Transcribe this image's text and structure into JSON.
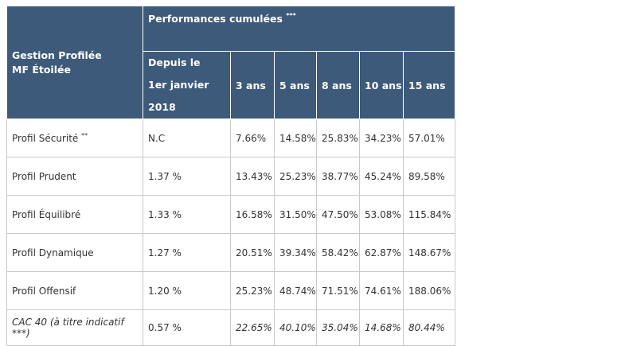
{
  "table": {
    "corner_header_line1": "Gestion Profilée",
    "corner_header_line2": "MF Étoilée",
    "group_header": "Performances cumulées",
    "group_header_mark": "***",
    "columns": [
      {
        "line1": "Depuis le",
        "line2": "1er janvier 2018"
      },
      {
        "label": "3 ans"
      },
      {
        "label": "5 ans"
      },
      {
        "label": "8 ans"
      },
      {
        "label": "10 ans"
      },
      {
        "label": "15 ans"
      }
    ],
    "rows": [
      {
        "label": "Profil Sécurité",
        "mark": "**",
        "values": [
          "N.C",
          "7.66%",
          "14.58%",
          "25.83%",
          "34.23%",
          "57.01%"
        ]
      },
      {
        "label": "Profil Prudent",
        "mark": "",
        "values": [
          "1.37 %",
          "13.43%",
          "25.23%",
          "38.77%",
          "45.24%",
          "89.58%"
        ]
      },
      {
        "label": "Profil Équilibré",
        "mark": "",
        "values": [
          "1.33 %",
          "16.58%",
          "31.50%",
          "47.50%",
          "53.08%",
          "115.84%"
        ]
      },
      {
        "label": "Profil Dynamique",
        "mark": "",
        "values": [
          "1.27 %",
          "20.51%",
          "39.34%",
          "58.42%",
          "62.87%",
          "148.67%"
        ]
      },
      {
        "label": "Profil Offensif",
        "mark": "",
        "values": [
          "1.20 %",
          "25.23%",
          "48.74%",
          "71.51%",
          "74.61%",
          "188.06%"
        ]
      },
      {
        "label": "CAC 40 (à titre indicatif ***)",
        "mark": "",
        "values": [
          "0.57 %",
          "22.65%",
          "40.10%",
          "35.04%",
          "14.68%",
          "80.44%"
        ]
      }
    ]
  },
  "colors": {
    "header_bg": "#3d5a7a",
    "header_text": "#ffffff",
    "border": "#c9c9c9",
    "cell_text": "#333333"
  }
}
